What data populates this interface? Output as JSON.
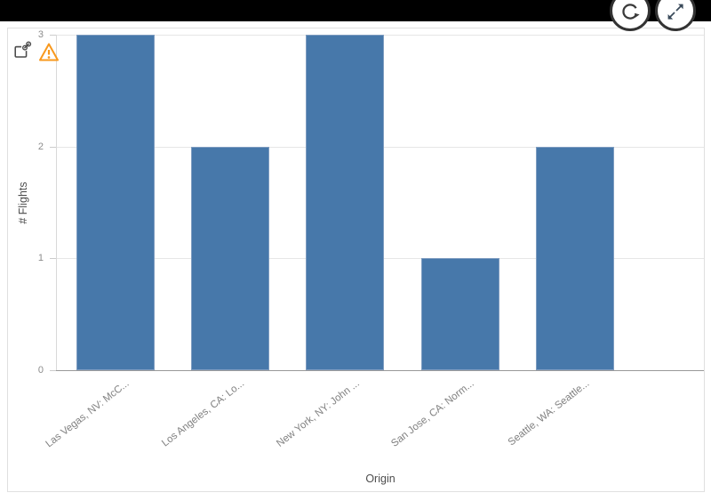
{
  "topbar": {
    "background": "#000000"
  },
  "toolbar": {
    "refresh_button": {
      "icon": "refresh-icon"
    },
    "expand_button": {
      "icon": "expand-icon"
    }
  },
  "chart_header": {
    "share_button": {
      "icon": "share-chart-icon"
    },
    "warning_badge": {
      "icon": "warning-icon",
      "color": "#f8981d"
    }
  },
  "colors": {
    "bar": "#4778aa",
    "bar_edge": "#7e9cc0",
    "gridline": "#e6e6e6",
    "axis_baseline": "#999999",
    "tick_text": "#8c8c8c",
    "axis_title_text": "#4d4d4d",
    "warning": "#f8981d",
    "card_border": "#e0e0e0"
  },
  "chart_data": {
    "type": "bar",
    "title": "",
    "categories": [
      "Las Vegas, NV: McC...",
      "Los Angeles, CA: Lo...",
      "New York, NY: John ...",
      "San Jose, CA: Norm...",
      "Seattle, WA: Seattle..."
    ],
    "values": [
      3,
      2,
      3,
      1,
      2
    ],
    "xlabel": "Origin",
    "ylabel": "# Flights",
    "ylim": [
      0,
      3
    ],
    "yticks": [
      0,
      1,
      2,
      3
    ],
    "grid": true,
    "legend": false,
    "bar_color": "#4778aa"
  }
}
